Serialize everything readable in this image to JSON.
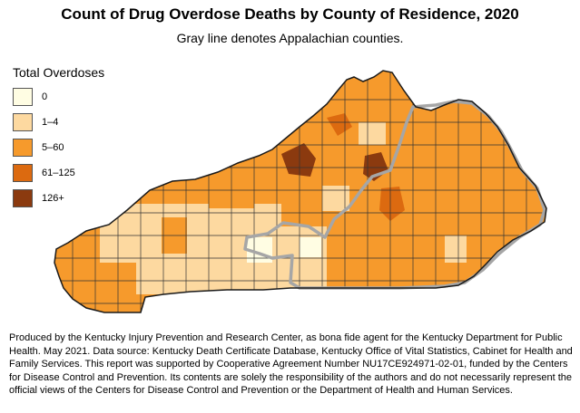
{
  "title": "Count of Drug Overdose Deaths by County of Residence, 2020",
  "subtitle": "Gray line denotes Appalachian counties.",
  "legend": {
    "title": "Total Overdoses",
    "items": [
      {
        "label": "0",
        "color": "#fffde3"
      },
      {
        "label": "1–4",
        "color": "#fdd9a0"
      },
      {
        "label": "5–60",
        "color": "#f69a2c"
      },
      {
        "label": "61–125",
        "color": "#dc6a10"
      },
      {
        "label": "126+",
        "color": "#8b3a0f"
      }
    ]
  },
  "colors": {
    "outline": "#1a1a1a",
    "appalachian_boundary": "#a6a6a6"
  },
  "footer": "Produced by the Kentucky Injury Prevention and Research Center, as bona fide agent for the Kentucky Department for Public Health. May 2021. Data source: Kentucky Death Certificate Database, Kentucky Office of Vital Statistics, Cabinet for Health and Family Services. This report was supported by Cooperative Agreement Number NU17CE924971-02-01, funded by the Centers for Disease Control and Prevention. Its contents are solely the responsibility of the authors and do not necessarily represent the official views of the Centers for Disease Control and Prevention or the Department of Health and Human Services."
}
